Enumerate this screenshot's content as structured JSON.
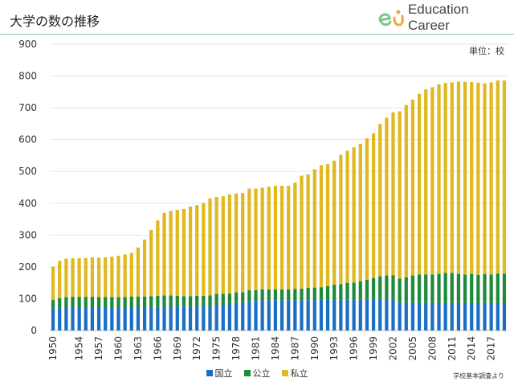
{
  "header": {
    "title": "大学の数の推移"
  },
  "logo": {
    "text": "Education Career"
  },
  "unit_label": "単位：校",
  "source_label": "学校基本調査より",
  "colors": {
    "national": "#1a6fc4",
    "public": "#1e8a3a",
    "private": "#e0b820",
    "grid": "#e6e6e6",
    "accent": "#7cc68a"
  },
  "chart_data": {
    "type": "bar",
    "stacked": true,
    "x": [
      1950,
      1951,
      1952,
      1953,
      1954,
      1955,
      1956,
      1957,
      1958,
      1959,
      1960,
      1961,
      1962,
      1963,
      1964,
      1965,
      1966,
      1967,
      1968,
      1969,
      1970,
      1971,
      1972,
      1973,
      1974,
      1975,
      1976,
      1977,
      1978,
      1979,
      1980,
      1981,
      1982,
      1983,
      1984,
      1985,
      1986,
      1987,
      1988,
      1989,
      1990,
      1991,
      1992,
      1993,
      1994,
      1995,
      1996,
      1997,
      1998,
      1999,
      2000,
      2001,
      2002,
      2003,
      2004,
      2005,
      2006,
      2007,
      2008,
      2009,
      2010,
      2011,
      2012,
      2013,
      2014,
      2015,
      2016,
      2017,
      2018,
      2019
    ],
    "x_tick_labels": [
      "1950",
      "1954",
      "1957",
      "1960",
      "1963",
      "1966",
      "1969",
      "1972",
      "1975",
      "1978",
      "1981",
      "1984",
      "1987",
      "1990",
      "1993",
      "1996",
      "1999",
      "2002",
      "2005",
      "2008",
      "2011",
      "2014",
      "2017"
    ],
    "x_tick_years": [
      1950,
      1954,
      1957,
      1960,
      1963,
      1966,
      1969,
      1972,
      1975,
      1978,
      1981,
      1984,
      1987,
      1990,
      1993,
      1996,
      1999,
      2002,
      2005,
      2008,
      2011,
      2014,
      2017
    ],
    "ylim": [
      0,
      900
    ],
    "y_ticks": [
      0,
      100,
      200,
      300,
      400,
      500,
      600,
      700,
      800,
      900
    ],
    "grid": true,
    "legend_position": "bottom",
    "series": [
      {
        "name": "国立",
        "values": [
          70,
          70,
          72,
          72,
          72,
          72,
          72,
          72,
          72,
          72,
          72,
          72,
          72,
          72,
          72,
          73,
          74,
          75,
          75,
          75,
          75,
          75,
          76,
          76,
          77,
          81,
          81,
          82,
          87,
          87,
          93,
          93,
          95,
          95,
          95,
          95,
          95,
          95,
          95,
          95,
          96,
          97,
          98,
          98,
          98,
          98,
          98,
          98,
          99,
          99,
          99,
          99,
          99,
          87,
          87,
          87,
          87,
          87,
          86,
          86,
          86,
          86,
          86,
          86,
          86,
          86,
          86,
          86,
          86,
          86
        ]
      },
      {
        "name": "公立",
        "values": [
          26,
          32,
          33,
          34,
          34,
          34,
          34,
          33,
          33,
          33,
          33,
          33,
          35,
          35,
          35,
          35,
          35,
          35,
          35,
          34,
          33,
          33,
          33,
          33,
          33,
          34,
          34,
          34,
          33,
          33,
          34,
          34,
          34,
          34,
          34,
          34,
          34,
          36,
          37,
          39,
          39,
          39,
          41,
          46,
          48,
          52,
          53,
          57,
          61,
          66,
          72,
          74,
          75,
          76,
          80,
          86,
          89,
          89,
          90,
          92,
          95,
          95,
          92,
          90,
          92,
          89,
          91,
          90,
          93,
          93
        ]
      },
      {
        "name": "私立",
        "values": [
          105,
          117,
          121,
          121,
          121,
          122,
          124,
          124,
          125,
          127,
          130,
          134,
          137,
          154,
          179,
          208,
          237,
          260,
          266,
          270,
          274,
          282,
          285,
          292,
          305,
          305,
          307,
          312,
          311,
          312,
          319,
          319,
          320,
          323,
          326,
          326,
          326,
          334,
          355,
          357,
          372,
          384,
          384,
          390,
          406,
          415,
          425,
          432,
          444,
          455,
          478,
          496,
          512,
          526,
          542,
          553,
          568,
          582,
          589,
          596,
          597,
          599,
          605,
          606,
          603,
          604,
          600,
          604,
          607,
          607
        ]
      }
    ]
  }
}
